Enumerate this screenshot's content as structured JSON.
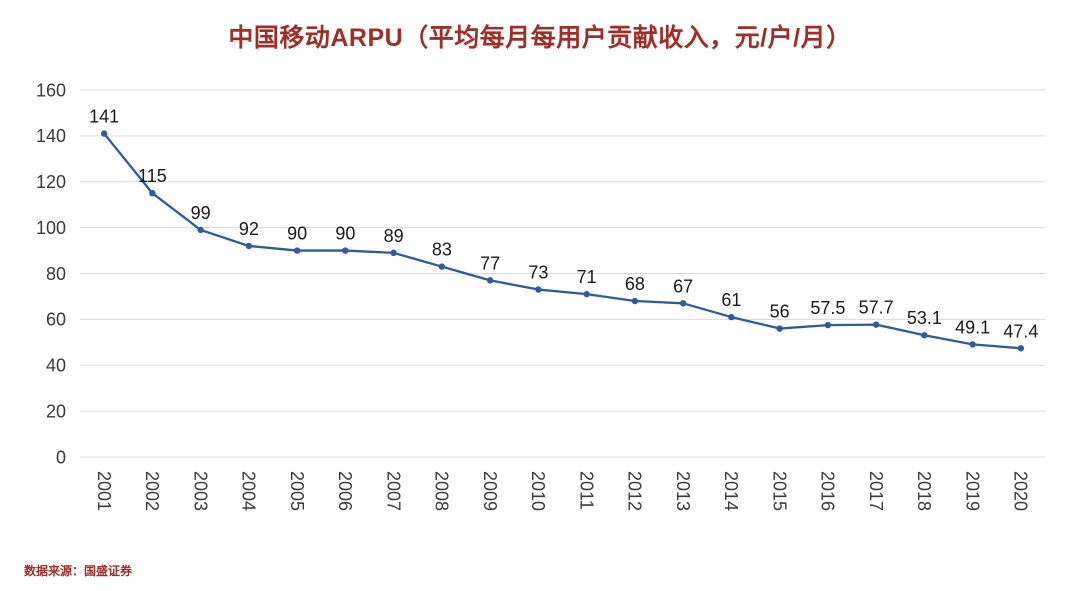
{
  "title": "中国移动ARPU（平均每月每用户贡献收入，元/户/月）",
  "source": "数据来源：国盛证券",
  "colors": {
    "line": "#2e5b9e",
    "marker": "#2e5b9e",
    "title": "#9e2f28",
    "source": "#9e2f28",
    "grid": "#d9d9d9",
    "axis_text": "#3a3a3a",
    "label_text": "#1a1a1a",
    "background": "#ffffff"
  },
  "chart_data": {
    "type": "line",
    "title": "中国移动ARPU（平均每月每用户贡献收入，元/户/月）",
    "xlabel": "",
    "ylabel": "",
    "categories": [
      "2001",
      "2002",
      "2003",
      "2004",
      "2005",
      "2006",
      "2007",
      "2008",
      "2009",
      "2010",
      "2011",
      "2012",
      "2013",
      "2014",
      "2015",
      "2016",
      "2017",
      "2018",
      "2019",
      "2020"
    ],
    "values": [
      141,
      115,
      99,
      92,
      90,
      90,
      89,
      83,
      77,
      73,
      71,
      68,
      67,
      61,
      56,
      57.5,
      57.7,
      53.1,
      49.1,
      47.4
    ],
    "point_labels": [
      "141",
      "115",
      "99",
      "92",
      "90",
      "90",
      "89",
      "83",
      "77",
      "73",
      "71",
      "68",
      "67",
      "61",
      "56",
      "57.5",
      "57.7",
      "53.1",
      "49.1",
      "47.4"
    ],
    "ylim": [
      0,
      160
    ],
    "yticks": [
      0,
      20,
      40,
      60,
      80,
      100,
      120,
      140,
      160
    ],
    "ytick_step": 20,
    "grid": true,
    "legend_position": "none",
    "x_label_rotation_deg": 90
  }
}
